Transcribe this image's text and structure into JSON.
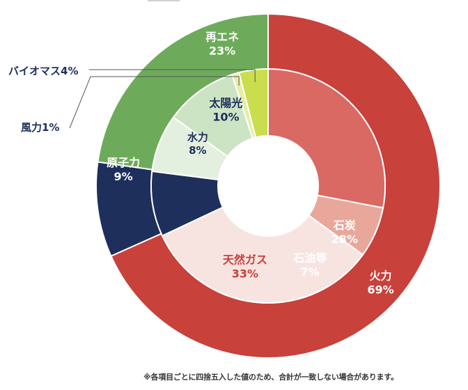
{
  "chart_data": {
    "type": "pie",
    "subtype": "nested-donut",
    "outer": [
      {
        "name": "火力",
        "value": 69,
        "label": "69%",
        "color": "#C8413A"
      },
      {
        "name": "原子力",
        "value": 9,
        "label": "9%",
        "color": "#1E2F5C"
      },
      {
        "name": "再エネ",
        "value": 23,
        "label": "23%",
        "color": "#6DAB5A"
      }
    ],
    "inner": [
      {
        "name": "石炭",
        "value": 28,
        "label": "28%",
        "color": "#DA6863"
      },
      {
        "name": "石油等",
        "value": 7,
        "label": "7%",
        "color": "#E9A79B"
      },
      {
        "name": "天然ガス",
        "value": 33,
        "label": "33%",
        "color": "#F7E4E1"
      },
      {
        "name": "原子力",
        "value": 9,
        "label": "9%",
        "color": "#1E2F5C"
      },
      {
        "name": "水力",
        "value": 8,
        "label": "8%",
        "color": "#E4F0DF"
      },
      {
        "name": "太陽光",
        "value": 10,
        "label": "10%",
        "color": "#CDE4C4"
      },
      {
        "name": "風力",
        "value": 1,
        "label": "1%",
        "color": "#E7EDA6"
      },
      {
        "name": "バイオマス",
        "value": 4,
        "label": "4%",
        "color": "#CADE4D"
      }
    ],
    "callouts": {
      "biomass": "バイオマス4%",
      "wind": "風力1%"
    },
    "footnote": "※各項目ごとに四捨五入した値のため、合計が一致しない場合があります。"
  }
}
